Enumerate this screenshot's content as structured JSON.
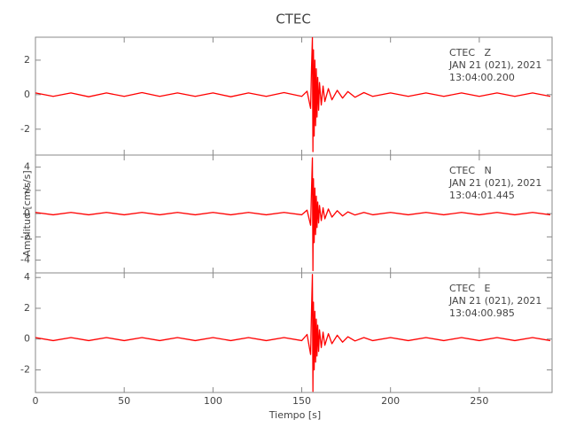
{
  "chart_data": [
    {
      "type": "line",
      "title": "CTEC",
      "color": "#ff0000",
      "annotations": [
        "CTEC   Z",
        "JAN 21 (021), 2021",
        "13:04:00.200"
      ],
      "xlim": [
        0,
        291
      ],
      "ylim": [
        -3.5,
        3.33
      ],
      "yticks": [
        -2,
        0,
        2
      ],
      "x": [
        0,
        10,
        20,
        30,
        40,
        50,
        60,
        70,
        80,
        90,
        100,
        110,
        120,
        130,
        140,
        150,
        153,
        155,
        155.5,
        156,
        156.3,
        156.6,
        157,
        157.4,
        157.8,
        158.2,
        158.6,
        159,
        159.5,
        160,
        161,
        162,
        163,
        165,
        167,
        170,
        173,
        176,
        180,
        185,
        190,
        200,
        210,
        220,
        230,
        240,
        250,
        260,
        270,
        280,
        290
      ],
      "values": [
        0.1,
        -0.1,
        0.1,
        -0.12,
        0.1,
        -0.1,
        0.12,
        -0.1,
        0.1,
        -0.1,
        0.1,
        -0.12,
        0.1,
        -0.1,
        0.12,
        -0.1,
        0.2,
        -0.8,
        1.5,
        3.3,
        -3.3,
        2.6,
        -2.4,
        2.0,
        -1.8,
        1.5,
        -1.3,
        1.0,
        -0.9,
        0.7,
        -0.6,
        0.5,
        -0.4,
        0.35,
        -0.3,
        0.25,
        -0.2,
        0.18,
        -0.15,
        0.12,
        -0.1,
        0.1,
        -0.1,
        0.1,
        -0.1,
        0.1,
        -0.1,
        0.1,
        -0.1,
        0.1,
        -0.1
      ]
    },
    {
      "type": "line",
      "ylabel": "Amplitud [cm/s/s]",
      "color": "#ff0000",
      "annotations": [
        "CTEC   N",
        "JAN 21 (021), 2021",
        "13:04:01.445"
      ],
      "xlim": [
        0,
        291
      ],
      "ylim": [
        -5.1,
        5.04
      ],
      "yticks": [
        -4,
        -2,
        0,
        2,
        4
      ],
      "x": [
        0,
        10,
        20,
        30,
        40,
        50,
        60,
        70,
        80,
        90,
        100,
        110,
        120,
        130,
        140,
        150,
        153,
        155,
        155.5,
        156,
        156.3,
        156.6,
        157,
        157.4,
        157.8,
        158.2,
        158.6,
        159,
        159.5,
        160,
        161,
        162,
        163,
        165,
        167,
        170,
        173,
        176,
        180,
        185,
        190,
        200,
        210,
        220,
        230,
        240,
        250,
        260,
        270,
        280,
        290
      ],
      "values": [
        0.1,
        -0.1,
        0.1,
        -0.1,
        0.1,
        -0.1,
        0.1,
        -0.1,
        0.1,
        -0.1,
        0.1,
        -0.1,
        0.1,
        -0.1,
        0.1,
        -0.1,
        0.3,
        -1.0,
        2.0,
        4.8,
        -4.9,
        3.0,
        -2.5,
        2.2,
        -1.8,
        1.5,
        -1.2,
        1.0,
        -0.8,
        0.7,
        -0.6,
        0.5,
        -0.45,
        0.4,
        -0.3,
        0.25,
        -0.2,
        0.15,
        -0.12,
        0.1,
        -0.1,
        0.1,
        -0.1,
        0.1,
        -0.1,
        0.1,
        -0.1,
        0.1,
        -0.1,
        0.1,
        -0.1
      ]
    },
    {
      "type": "line",
      "xlabel": "Tiempo [s]",
      "color": "#ff0000",
      "annotations": [
        "CTEC   E",
        "JAN 21 (021), 2021",
        "13:04:00.985"
      ],
      "xlim": [
        0,
        291
      ],
      "ylim": [
        -3.47,
        4.3
      ],
      "yticks": [
        -2,
        0,
        2,
        4
      ],
      "xticks": [
        0,
        50,
        100,
        150,
        200,
        250
      ],
      "x": [
        0,
        10,
        20,
        30,
        40,
        50,
        60,
        70,
        80,
        90,
        100,
        110,
        120,
        130,
        140,
        150,
        153,
        155,
        155.5,
        156,
        156.3,
        156.6,
        157,
        157.4,
        157.8,
        158.2,
        158.6,
        159,
        159.5,
        160,
        161,
        162,
        163,
        165,
        167,
        170,
        173,
        176,
        180,
        185,
        190,
        200,
        210,
        220,
        230,
        240,
        250,
        260,
        270,
        280,
        290
      ],
      "values": [
        0.1,
        -0.1,
        0.1,
        -0.1,
        0.1,
        -0.1,
        0.1,
        -0.1,
        0.1,
        -0.1,
        0.1,
        -0.1,
        0.1,
        -0.1,
        0.1,
        -0.1,
        0.3,
        -1.0,
        1.8,
        4.2,
        -3.4,
        2.4,
        -2.0,
        1.8,
        -1.5,
        1.3,
        -1.1,
        0.9,
        -0.8,
        0.6,
        -0.55,
        0.45,
        -0.4,
        0.35,
        -0.3,
        0.25,
        -0.2,
        0.15,
        -0.12,
        0.1,
        -0.1,
        0.1,
        -0.1,
        0.1,
        -0.1,
        0.1,
        -0.1,
        0.1,
        -0.1,
        0.1,
        -0.1
      ]
    }
  ]
}
